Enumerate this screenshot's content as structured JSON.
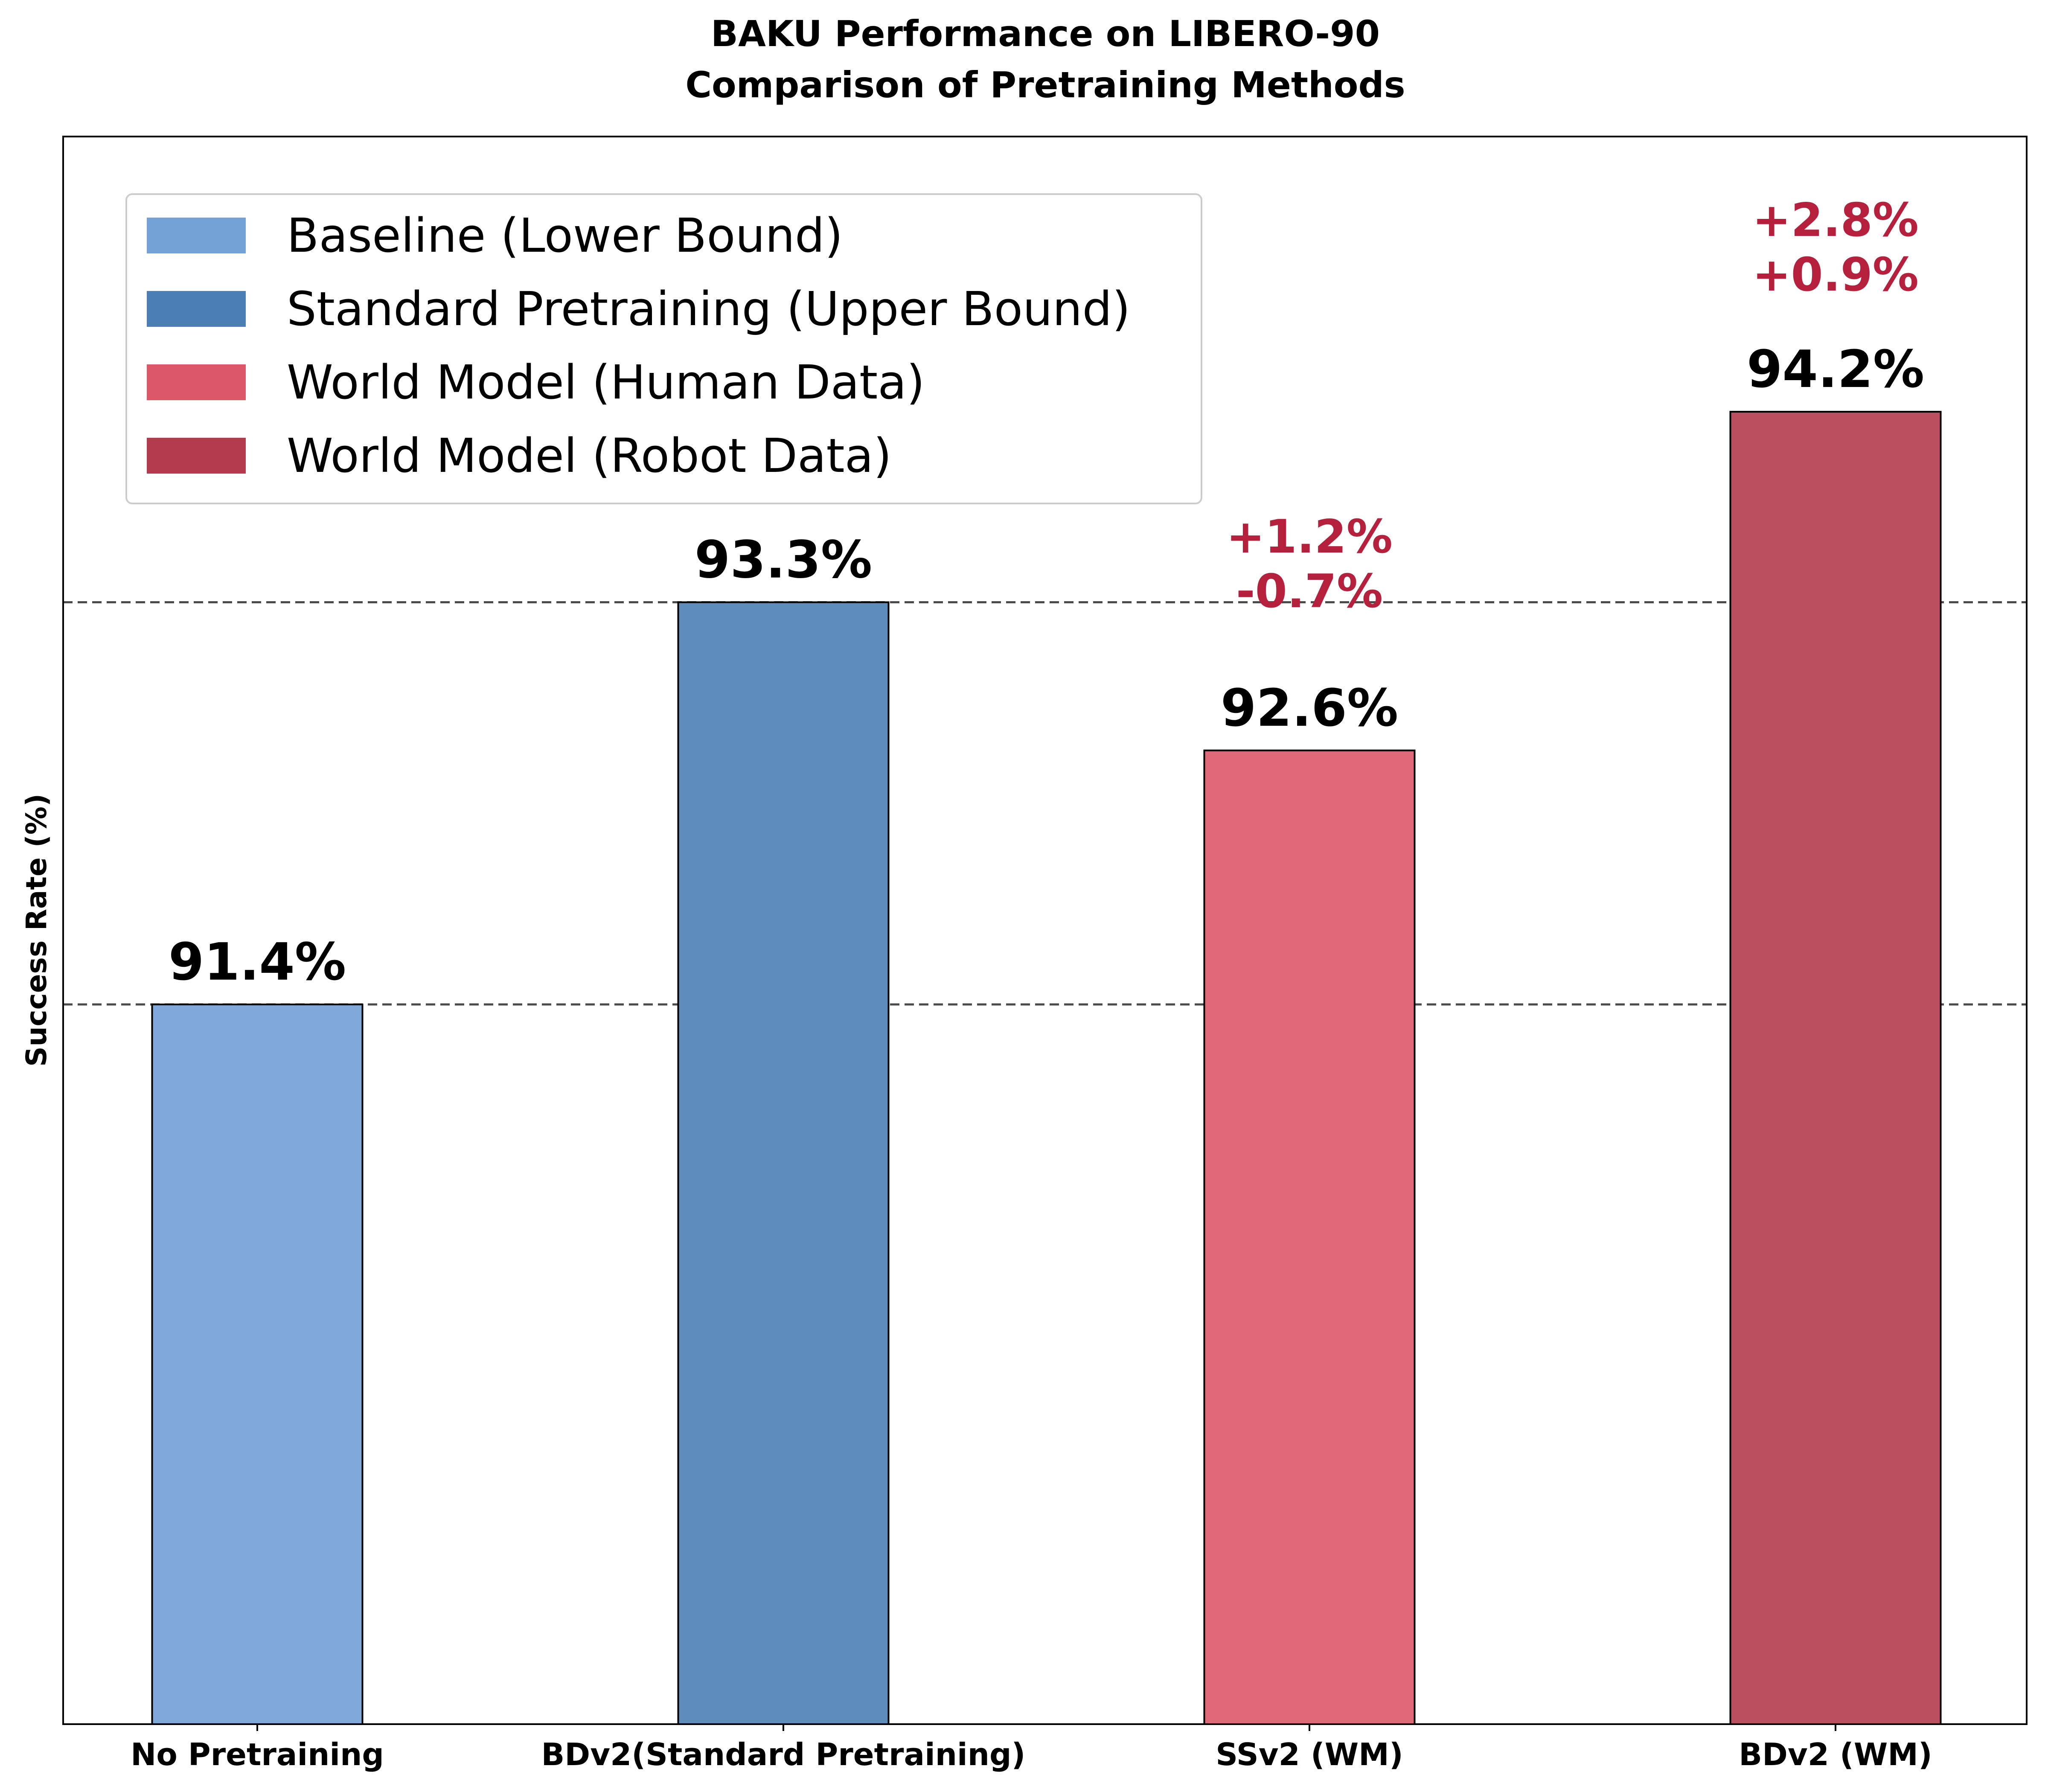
{
  "chart_data": {
    "type": "bar",
    "title": "BAKU Performance on LIBERO-90",
    "subtitle": "Comparison of Pretraining Methods",
    "xlabel": "",
    "ylabel": "Success Rate (%)",
    "ylim": [
      88.0,
      95.5
    ],
    "grid": false,
    "y_ticks_visible": false,
    "categories": [
      "No Pretraining",
      "BDv2(Standard Pretraining)",
      "SSv2 (WM)",
      "BDv2 (WM)"
    ],
    "values": [
      91.4,
      93.3,
      92.6,
      94.2
    ],
    "value_labels": [
      "91.4%",
      "93.3%",
      "92.6%",
      "94.2%"
    ],
    "bar_colors": [
      "#80A9DA",
      "#5E8CBB",
      "#E06978",
      "#BA4F5F"
    ],
    "reference_lines": [
      {
        "value": 91.4,
        "style": "dashed"
      },
      {
        "value": 93.3,
        "style": "dashed"
      }
    ],
    "annotations": [
      {
        "category": "SSv2 (WM)",
        "lines": [
          "+1.2%",
          "-0.7%"
        ],
        "color": "#B5203C"
      },
      {
        "category": "BDv2 (WM)",
        "lines": [
          "+2.8%",
          "+0.9%"
        ],
        "color": "#B5203C"
      }
    ],
    "legend": {
      "position": "top-left",
      "entries": [
        {
          "label": "Baseline (Lower Bound)",
          "color": "#74A2D6"
        },
        {
          "label": "Standard Pretraining (Upper Bound)",
          "color": "#4A7EB5"
        },
        {
          "label": "World Model (Human Data)",
          "color": "#DC5768"
        },
        {
          "label": "World Model (Robot Data)",
          "color": "#B23B4E"
        }
      ]
    }
  }
}
